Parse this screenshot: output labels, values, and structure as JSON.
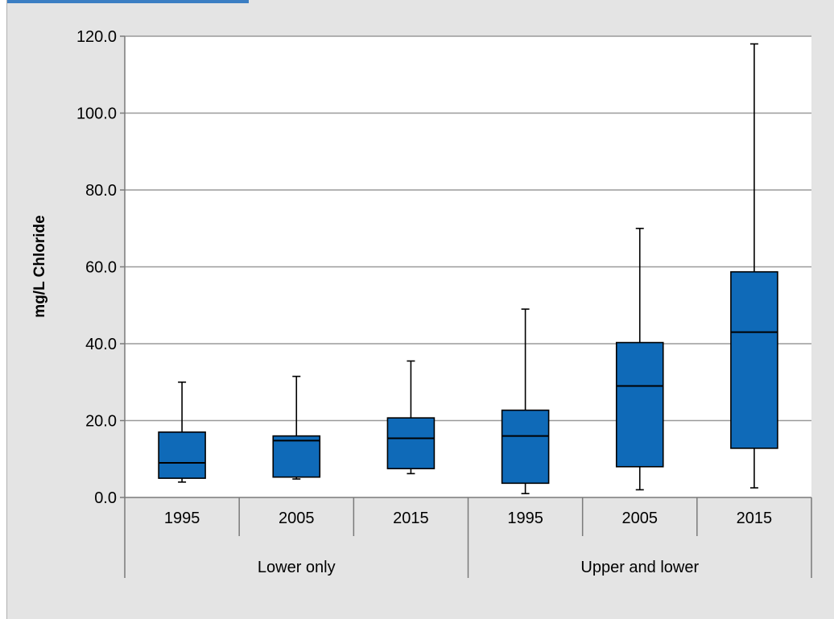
{
  "chart_data": {
    "type": "boxplot",
    "ylabel": "mg/L Chloride",
    "ylim": [
      0,
      120
    ],
    "yticks": [
      "0.0",
      "20.0",
      "40.0",
      "60.0",
      "80.0",
      "100.0",
      "120.0"
    ],
    "ytick_values": [
      0,
      20,
      40,
      60,
      80,
      100,
      120
    ],
    "grid": true,
    "groups": [
      {
        "label": "Lower only",
        "categories": [
          "1995",
          "2005",
          "2015"
        ]
      },
      {
        "label": "Upper and lower",
        "categories": [
          "1995",
          "2005",
          "2015"
        ]
      }
    ],
    "boxes": [
      {
        "category": "1995",
        "group": "Lower only",
        "min": 4.0,
        "q1": 5.0,
        "median": 9.0,
        "q3": 17.0,
        "max": 30.0
      },
      {
        "category": "2005",
        "group": "Lower only",
        "min": 4.8,
        "q1": 5.3,
        "median": 14.8,
        "q3": 16.0,
        "max": 31.5
      },
      {
        "category": "2015",
        "group": "Lower only",
        "min": 6.2,
        "q1": 7.5,
        "median": 15.4,
        "q3": 20.7,
        "max": 35.5
      },
      {
        "category": "1995",
        "group": "Upper and lower",
        "min": 1.0,
        "q1": 3.7,
        "median": 16.0,
        "q3": 22.7,
        "max": 49.0
      },
      {
        "category": "2005",
        "group": "Upper and lower",
        "min": 2.0,
        "q1": 8.0,
        "median": 29.0,
        "q3": 40.3,
        "max": 70.0
      },
      {
        "category": "2015",
        "group": "Upper and lower",
        "min": 2.5,
        "q1": 12.8,
        "median": 43.0,
        "q3": 58.7,
        "max": 118.0
      }
    ],
    "box_color": "#0f6ab8"
  }
}
